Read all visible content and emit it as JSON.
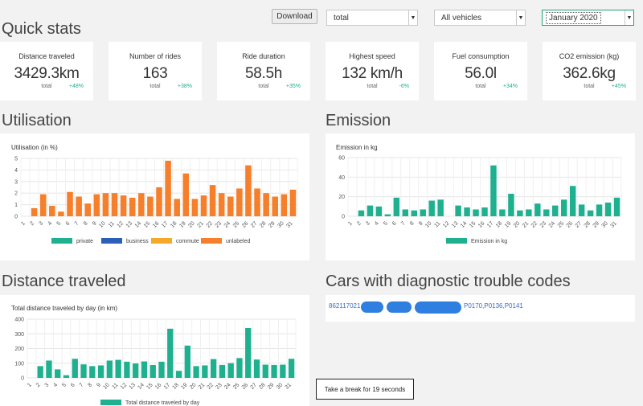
{
  "toolbar": {
    "download_label": "Download",
    "metric_select": "total",
    "vehicle_select": "All vehicles",
    "month_select": "January 2020"
  },
  "sections": {
    "quick_stats": "Quick stats",
    "utilisation": "Utilisation",
    "emission": "Emission",
    "distance": "Distance traveled",
    "dtc": "Cars with diagnostic trouble codes"
  },
  "stats": [
    {
      "label": "Distance traveled",
      "value": "3429.3km",
      "sub": "total",
      "delta": "+48%"
    },
    {
      "label": "Number of rides",
      "value": "163",
      "sub": "total",
      "delta": "+38%"
    },
    {
      "label": "Ride duration",
      "value": "58.5h",
      "sub": "total",
      "delta": "+35%"
    },
    {
      "label": "Highest speed",
      "value": "132 km/h",
      "sub": "total",
      "delta": "-6%"
    },
    {
      "label": "Fuel consumption",
      "value": "56.0l",
      "sub": "total",
      "delta": "+34%"
    },
    {
      "label": "CO2 emission (kg)",
      "value": "362.6kg",
      "sub": "total",
      "delta": "+45%"
    }
  ],
  "colors": {
    "green": "#1fb08f",
    "blue": "#2c5fb8",
    "yellow": "#f4a92a",
    "orange": "#f57f2a",
    "link": "#3b6fc0"
  },
  "chart_data": [
    {
      "type": "bar",
      "title": "Utilisation (in %)",
      "categories": [
        "1",
        "2",
        "3",
        "4",
        "5",
        "6",
        "7",
        "8",
        "9",
        "10",
        "11",
        "12",
        "13",
        "14",
        "15",
        "16",
        "17",
        "18",
        "19",
        "20",
        "21",
        "22",
        "23",
        "24",
        "25",
        "26",
        "27",
        "28",
        "29",
        "30",
        "31"
      ],
      "ylim": [
        0,
        5
      ],
      "yticks": [
        "0",
        "1",
        "2",
        "3",
        "4",
        "5"
      ],
      "series": [
        {
          "name": "private",
          "values": [
            0,
            0,
            0,
            0,
            0,
            0,
            0,
            0,
            0,
            0,
            0,
            0,
            0,
            0,
            0,
            0,
            0,
            0,
            0,
            0,
            0,
            0,
            0,
            0,
            0,
            0,
            0,
            0,
            0,
            0,
            0
          ]
        },
        {
          "name": "business",
          "values": [
            0,
            0,
            0,
            0,
            0,
            0,
            0,
            0,
            0,
            0,
            0,
            0,
            0,
            0,
            0,
            0,
            0,
            0,
            0,
            0,
            0,
            0,
            0,
            0,
            0,
            0,
            0,
            0,
            0,
            0,
            0
          ]
        },
        {
          "name": "commute",
          "values": [
            0,
            0,
            0,
            0,
            0,
            0,
            0,
            0,
            0,
            0,
            0,
            0,
            0,
            0,
            0,
            0,
            0,
            0,
            0,
            0,
            0,
            0,
            0,
            0,
            0,
            0,
            0,
            0,
            0,
            0,
            0
          ]
        },
        {
          "name": "unlabeled",
          "values": [
            0,
            0.7,
            1.9,
            0.9,
            0.4,
            2.1,
            1.7,
            1.1,
            1.9,
            2.0,
            2.0,
            1.8,
            1.6,
            2.0,
            1.7,
            2.5,
            4.8,
            1.5,
            3.7,
            1.5,
            1.8,
            2.7,
            2.0,
            1.7,
            2.4,
            4.4,
            2.4,
            2.0,
            1.7,
            1.9,
            2.3
          ]
        }
      ],
      "legend": "bottom"
    },
    {
      "type": "bar",
      "title": "Emission in kg",
      "categories": [
        "1",
        "2",
        "3",
        "4",
        "5",
        "6",
        "7",
        "8",
        "9",
        "10",
        "11",
        "12",
        "13",
        "14",
        "15",
        "16",
        "17",
        "18",
        "19",
        "20",
        "21",
        "22",
        "23",
        "24",
        "25",
        "26",
        "27",
        "28",
        "29",
        "30",
        "31"
      ],
      "ylim": [
        0,
        60
      ],
      "yticks": [
        "0",
        "20",
        "40",
        "60"
      ],
      "series": [
        {
          "name": "Emission in kg",
          "values": [
            0,
            6,
            11,
            10,
            2,
            19,
            7,
            6,
            7,
            16,
            17,
            0,
            11,
            9,
            7,
            9,
            52,
            7,
            23,
            6,
            7,
            13,
            7,
            11,
            17,
            31,
            12,
            6,
            12,
            14,
            19
          ]
        }
      ],
      "legend": "bottom"
    },
    {
      "type": "bar",
      "title": "Total distance traveled by day (in km)",
      "categories": [
        "1",
        "2",
        "3",
        "4",
        "5",
        "6",
        "7",
        "8",
        "9",
        "10",
        "11",
        "12",
        "13",
        "14",
        "15",
        "16",
        "17",
        "18",
        "19",
        "20",
        "21",
        "22",
        "23",
        "24",
        "25",
        "26",
        "27",
        "28",
        "29",
        "30",
        "31"
      ],
      "ylim": [
        0,
        400
      ],
      "yticks": [
        "0",
        "100",
        "200",
        "300",
        "400"
      ],
      "series": [
        {
          "name": "Total distance traveled by day",
          "values": [
            0,
            80,
            118,
            58,
            18,
            130,
            92,
            80,
            85,
            118,
            123,
            110,
            98,
            112,
            88,
            110,
            335,
            48,
            220,
            80,
            85,
            128,
            88,
            100,
            135,
            340,
            125,
            90,
            88,
            90,
            130
          ]
        }
      ],
      "legend": "bottom"
    }
  ],
  "dtc": {
    "vehicle_id": "862117021",
    "codes": "P0170,P0136,P0141"
  },
  "toast": "Take a break for 19 seconds"
}
